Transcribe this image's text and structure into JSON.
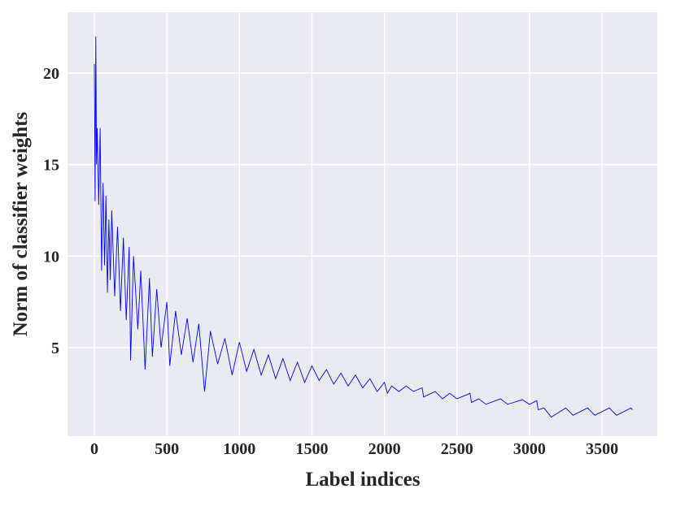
{
  "chart_data": {
    "type": "line",
    "x_label": "Label indices",
    "y_label": "Norm of classifier weights",
    "color": "#0000ff",
    "background": "#eaeaf2",
    "grid": true,
    "xlim": [
      -185,
      3881
    ],
    "ylim": [
      0.16,
      23.33
    ],
    "xticks": [
      0,
      500,
      1000,
      1500,
      2000,
      2500,
      3000,
      3500
    ],
    "yticks": [
      5,
      10,
      15,
      20
    ],
    "x": [
      0,
      5,
      10,
      15,
      20,
      30,
      40,
      50,
      60,
      70,
      80,
      90,
      100,
      110,
      120,
      140,
      160,
      180,
      200,
      220,
      240,
      250,
      270,
      300,
      320,
      350,
      380,
      400,
      430,
      460,
      500,
      520,
      560,
      600,
      640,
      680,
      720,
      760,
      800,
      850,
      900,
      950,
      1000,
      1050,
      1100,
      1150,
      1200,
      1250,
      1300,
      1350,
      1400,
      1450,
      1500,
      1550,
      1600,
      1650,
      1700,
      1750,
      1800,
      1850,
      1900,
      1950,
      2000,
      2020,
      2050,
      2100,
      2150,
      2200,
      2260,
      2270,
      2350,
      2400,
      2450,
      2500,
      2590,
      2600,
      2650,
      2700,
      2800,
      2850,
      2950,
      3000,
      3050,
      3060,
      3100,
      3150,
      3250,
      3300,
      3400,
      3450,
      3550,
      3600,
      3700,
      3710
    ],
    "values": [
      20.5,
      13,
      22,
      15,
      17,
      12.8,
      17,
      9.2,
      14,
      9.5,
      13.3,
      8,
      12,
      8.7,
      12.5,
      7.8,
      11.6,
      7,
      11,
      6.5,
      10.5,
      4.3,
      10,
      6,
      9.2,
      3.8,
      8.8,
      4.5,
      8.2,
      5,
      7.5,
      4,
      7,
      4.6,
      6.6,
      4.2,
      6.3,
      2.6,
      5.9,
      4.1,
      5.5,
      3.5,
      5.3,
      3.7,
      4.9,
      3.5,
      4.6,
      3.3,
      4.4,
      3.2,
      4.2,
      3.1,
      4,
      3.2,
      3.8,
      3.0,
      3.6,
      2.9,
      3.5,
      2.8,
      3.3,
      2.6,
      3.1,
      2.5,
      2.9,
      2.6,
      2.9,
      2.6,
      2.8,
      2.3,
      2.6,
      2.2,
      2.5,
      2.2,
      2.5,
      2.0,
      2.2,
      1.9,
      2.2,
      1.9,
      2.15,
      1.9,
      2.1,
      1.6,
      1.7,
      1.2,
      1.7,
      1.3,
      1.7,
      1.3,
      1.7,
      1.3,
      1.7,
      1.6
    ]
  }
}
